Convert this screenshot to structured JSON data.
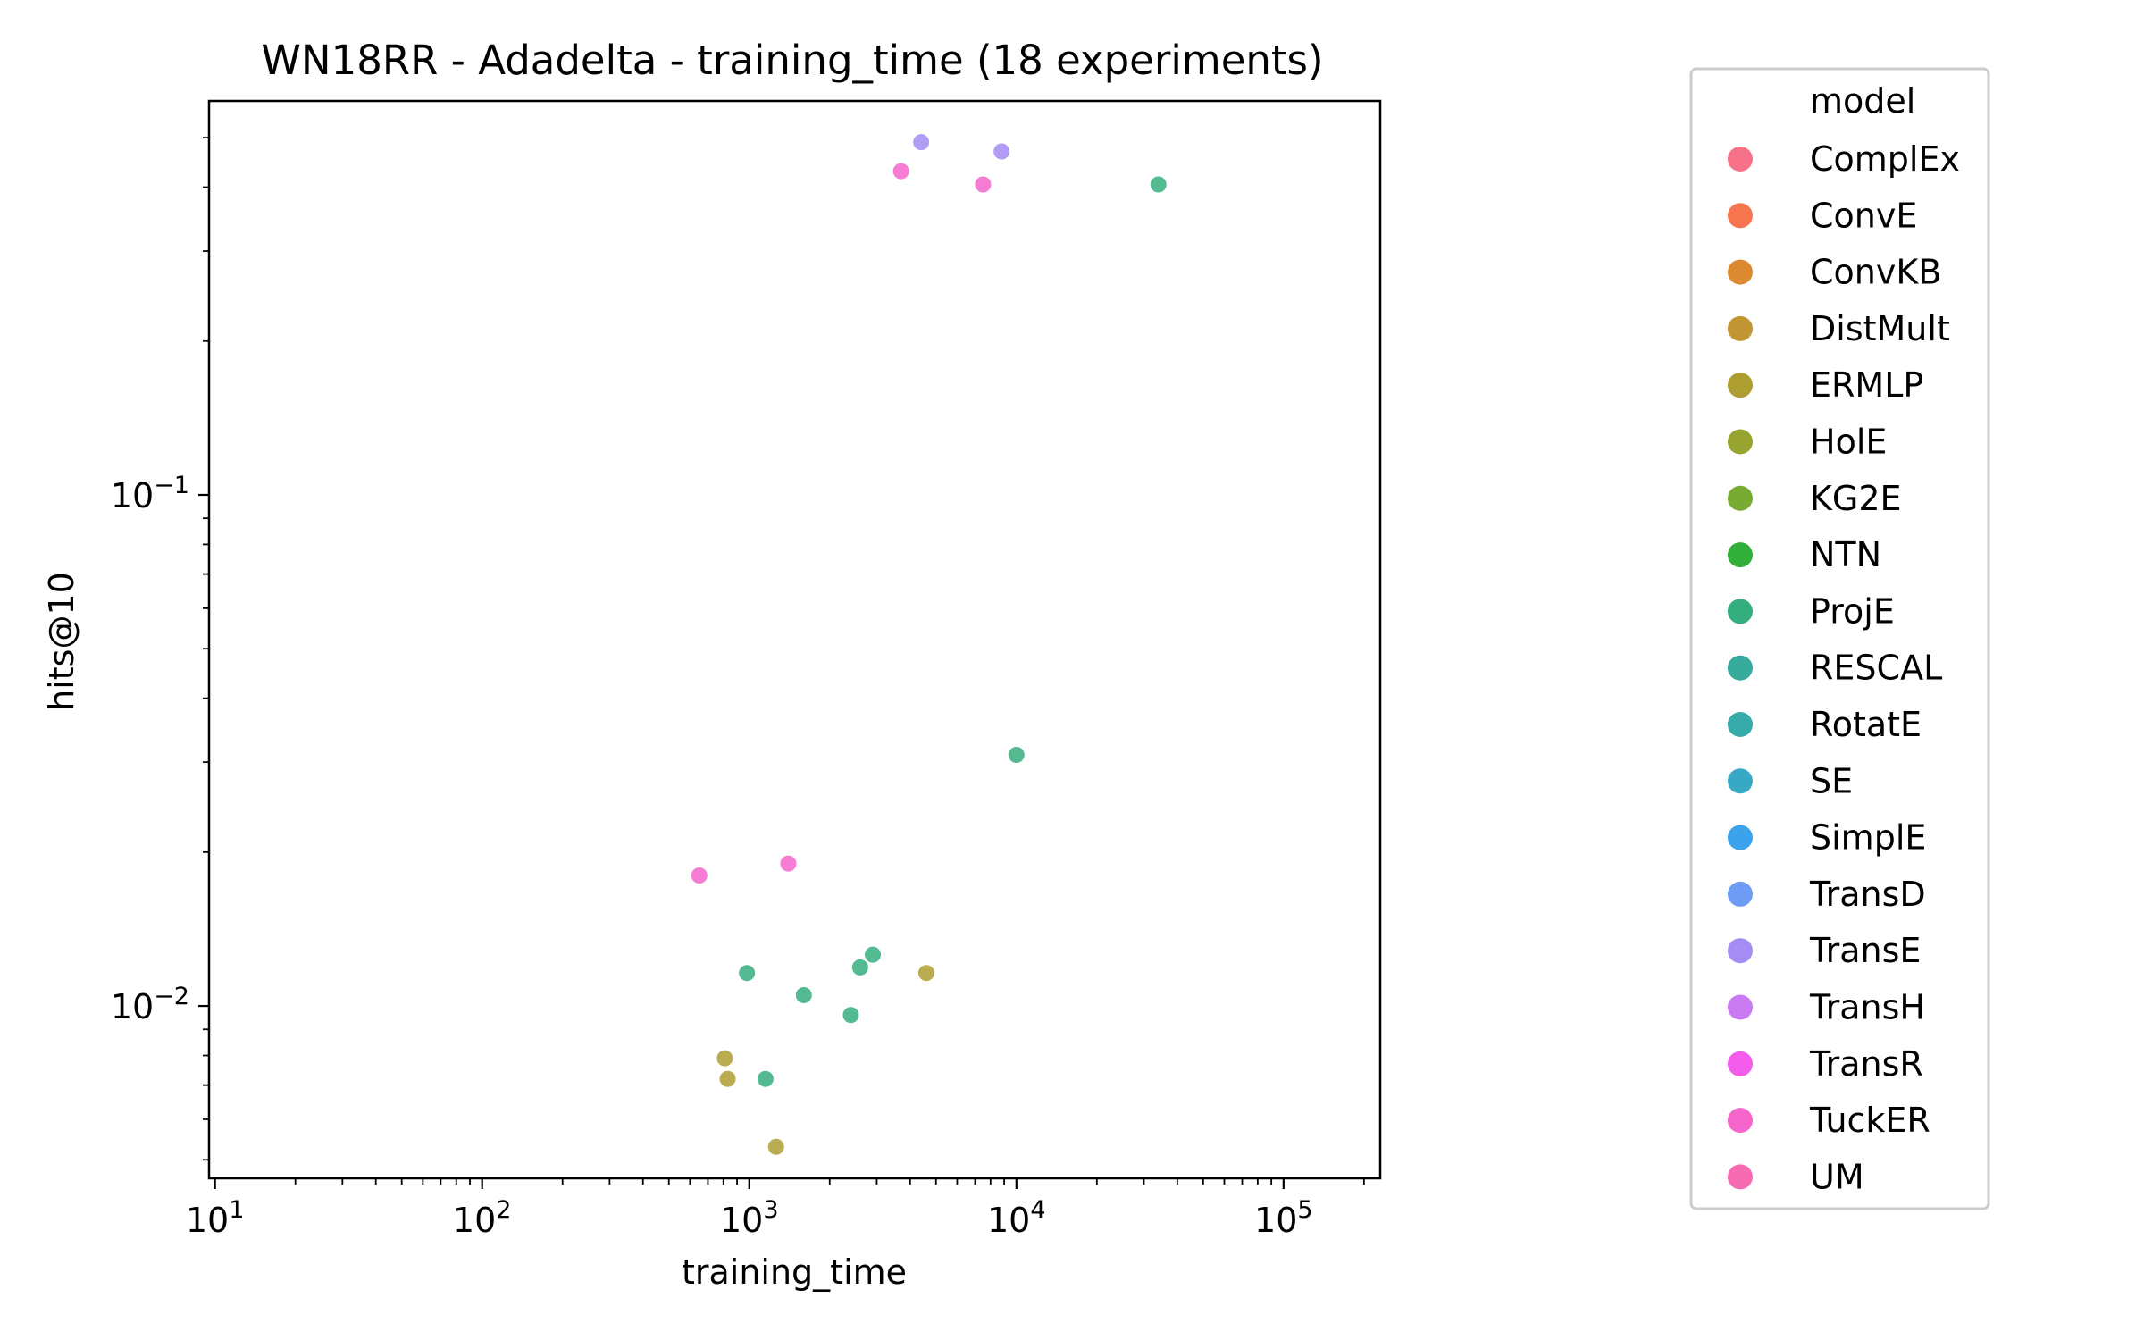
{
  "chart_data": {
    "type": "scatter",
    "title": "WN18RR - Adadelta - training_time  (18 experiments)",
    "xlabel": "training_time",
    "ylabel": "hits@10",
    "xscale": "log",
    "yscale": "log",
    "xlim": [
      9.5,
      230000
    ],
    "ylim": [
      0.0046,
      0.59
    ],
    "grid": false,
    "legend_placement": "outside-right",
    "x_ticks": [
      {
        "value": 10,
        "base": "10",
        "exp": "1"
      },
      {
        "value": 100,
        "base": "10",
        "exp": "2"
      },
      {
        "value": 1000,
        "base": "10",
        "exp": "3"
      },
      {
        "value": 10000,
        "base": "10",
        "exp": "4"
      },
      {
        "value": 100000,
        "base": "10",
        "exp": "5"
      }
    ],
    "y_ticks": [
      {
        "value": 0.1,
        "base": "10",
        "exp": "−1"
      },
      {
        "value": 0.01,
        "base": "10",
        "exp": "−2"
      }
    ],
    "legend_title": "model",
    "legend": [
      {
        "label": "ComplEx",
        "color": "#f77189"
      },
      {
        "label": "ConvE",
        "color": "#f7754f"
      },
      {
        "label": "ConvKB",
        "color": "#dc8932"
      },
      {
        "label": "DistMult",
        "color": "#c39532"
      },
      {
        "label": "ERMLP",
        "color": "#ae9d31"
      },
      {
        "label": "HolE",
        "color": "#97a431"
      },
      {
        "label": "KG2E",
        "color": "#77ab31"
      },
      {
        "label": "NTN",
        "color": "#33b039"
      },
      {
        "label": "ProjE",
        "color": "#35ae7f"
      },
      {
        "label": "RESCAL",
        "color": "#36ab9c"
      },
      {
        "label": "RotatE",
        "color": "#37aaaa"
      },
      {
        "label": "SE",
        "color": "#38a9c5"
      },
      {
        "label": "SimplE",
        "color": "#3ba3ec"
      },
      {
        "label": "TransD",
        "color": "#6e9bf4"
      },
      {
        "label": "TransE",
        "color": "#a48cf4"
      },
      {
        "label": "TransH",
        "color": "#cc79f4"
      },
      {
        "label": "TransR",
        "color": "#f45deb"
      },
      {
        "label": "TuckER",
        "color": "#f565cc"
      },
      {
        "label": "UM",
        "color": "#f66bb1"
      }
    ],
    "series": [
      {
        "name": "TransE",
        "color": "#a48cf4",
        "points": [
          [
            4400,
            0.49
          ],
          [
            8800,
            0.47
          ]
        ]
      },
      {
        "name": "TuckER",
        "color": "#f565cc",
        "points": [
          [
            3700,
            0.43
          ],
          [
            7500,
            0.405
          ],
          [
            650,
            0.018
          ],
          [
            1400,
            0.019
          ]
        ]
      },
      {
        "name": "ProjE",
        "color": "#35ae7f",
        "points": [
          [
            34000,
            0.405
          ],
          [
            10000,
            0.031
          ],
          [
            2900,
            0.0126
          ],
          [
            2600,
            0.0119
          ],
          [
            980,
            0.0116
          ],
          [
            1600,
            0.0105
          ],
          [
            2400,
            0.0096
          ],
          [
            1150,
            0.0072
          ]
        ]
      },
      {
        "name": "ERMLP",
        "color": "#ae9d31",
        "points": [
          [
            4600,
            0.0116
          ],
          [
            810,
            0.0079
          ],
          [
            830,
            0.0072
          ],
          [
            1260,
            0.0053
          ]
        ]
      }
    ]
  }
}
